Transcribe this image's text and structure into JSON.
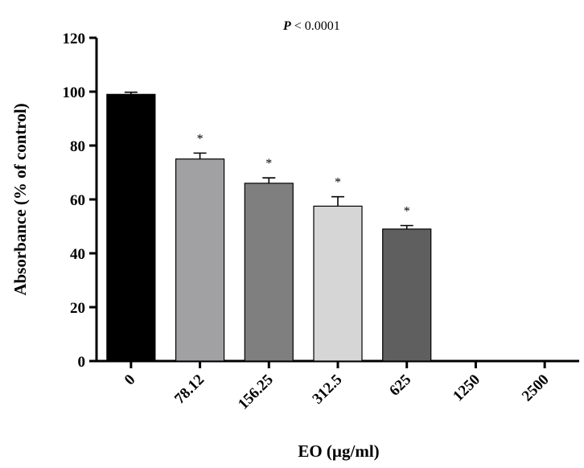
{
  "chart_data": {
    "type": "bar",
    "title": "",
    "annotation": {
      "p_symbol": "P",
      "p_text": " < 0.0001"
    },
    "xlabel": "EO (µg/ml)",
    "ylabel": "Absorbance (% of control)",
    "ylim": [
      0,
      120
    ],
    "yticks": [
      "0",
      "20",
      "40",
      "60",
      "80",
      "100",
      "120"
    ],
    "grid": false,
    "categories": [
      "0",
      "78.12",
      "156.25",
      "312.5",
      "625",
      "1250",
      "2500"
    ],
    "values": [
      99,
      75,
      66,
      57.5,
      49,
      0,
      0
    ],
    "errors": [
      0.8,
      2.2,
      2.0,
      3.5,
      1.3,
      0,
      0
    ],
    "significance": [
      "",
      "*",
      "*",
      "*",
      "*",
      "",
      ""
    ],
    "colors": [
      "#000000",
      "#a1a1a4",
      "#7f7f7f",
      "#d6d6d6",
      "#5f5f5f",
      "#000000",
      "#000000"
    ]
  }
}
